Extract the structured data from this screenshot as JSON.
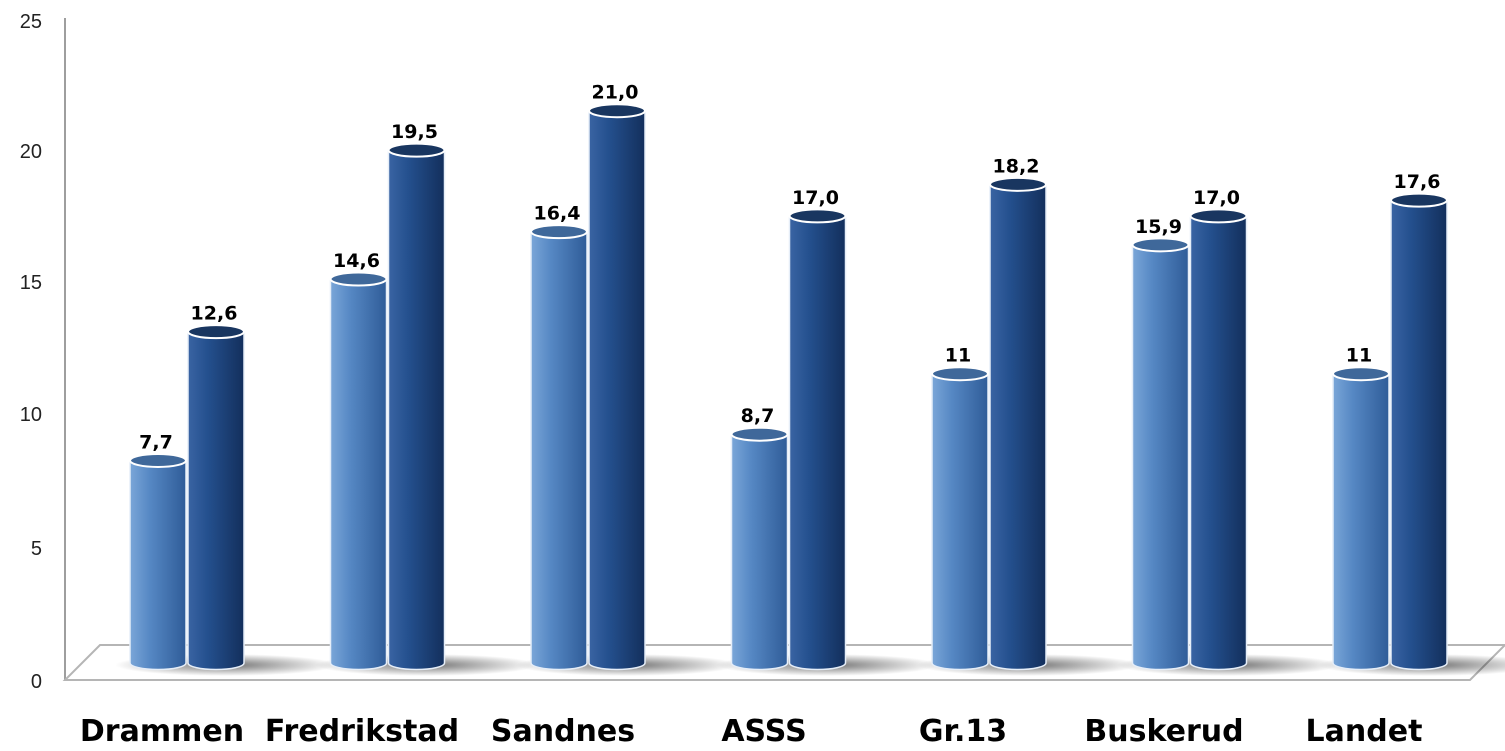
{
  "chart_data": {
    "type": "bar",
    "style": "3d-cylinder",
    "categories": [
      "Drammen",
      "Fredrikstad",
      "Sandnes",
      "ASSS",
      "Gr.13",
      "Buskerud",
      "Landet"
    ],
    "series": [
      {
        "values": [
          7.7,
          14.6,
          16.4,
          8.7,
          11,
          15.9,
          11
        ],
        "labels": [
          "7,7",
          "14,6",
          "16,4",
          "8,7",
          "11",
          "15,9",
          "11"
        ],
        "color": "#4a7ab5"
      },
      {
        "values": [
          12.6,
          19.5,
          21.0,
          17.0,
          18.2,
          17.0,
          17.6
        ],
        "labels": [
          "12,6",
          "19,5",
          "21,0",
          "17,0",
          "18,2",
          "17,0",
          "17,6"
        ],
        "color": "#1f4478"
      }
    ],
    "ylim": [
      0,
      25
    ],
    "yticks": [
      "0",
      "5",
      "10",
      "15",
      "20",
      "25"
    ],
    "title": "",
    "xlabel": "",
    "ylabel": "",
    "grid": false,
    "legend": "none"
  }
}
